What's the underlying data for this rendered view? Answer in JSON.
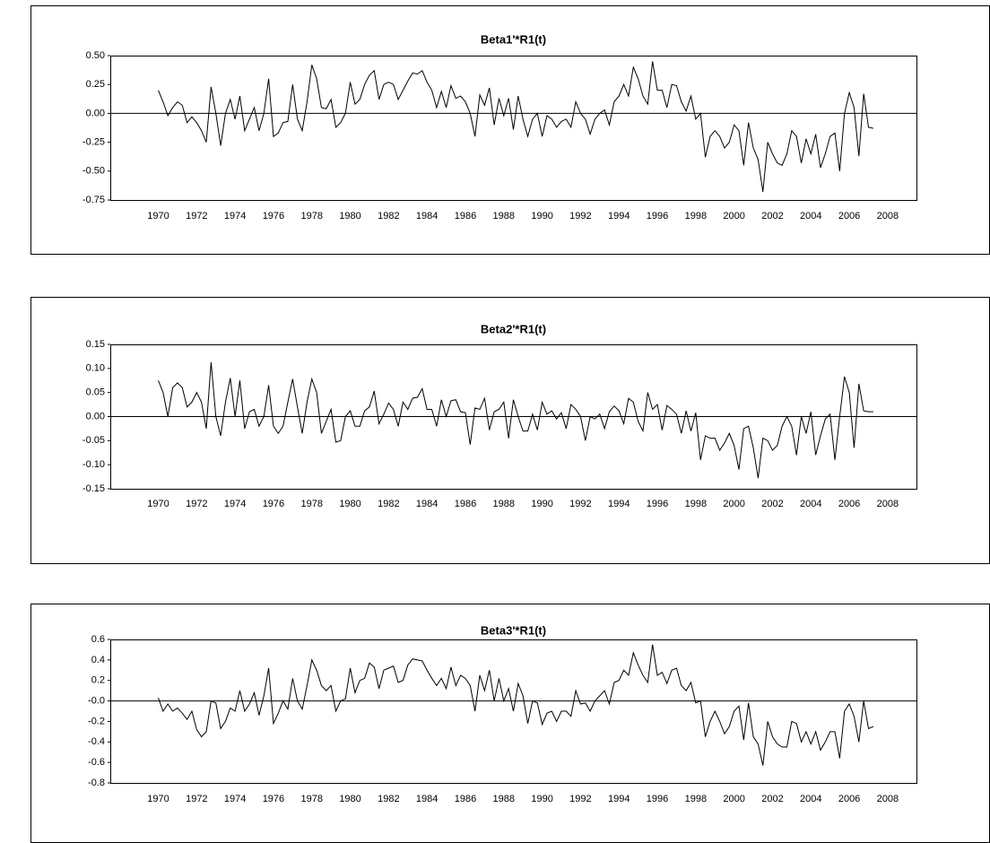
{
  "chart_data": [
    {
      "type": "line",
      "title": "Beta1'*R1(t)",
      "color": "#000000",
      "xlim": [
        1967.5,
        2009.5
      ],
      "xticks": [
        1970,
        1972,
        1974,
        1976,
        1978,
        1980,
        1982,
        1984,
        1986,
        1988,
        1990,
        1992,
        1994,
        1996,
        1998,
        2000,
        2002,
        2004,
        2006,
        2008
      ],
      "ylim": [
        -0.75,
        0.5
      ],
      "yticks": [
        {
          "value": 0.5,
          "label": "0.50"
        },
        {
          "value": 0.25,
          "label": "0.25"
        },
        {
          "value": 0,
          "label": "0.00"
        },
        {
          "value": -0.25,
          "label": "-0.25"
        },
        {
          "value": -0.5,
          "label": "-0.50"
        },
        {
          "value": -0.75,
          "label": "-0.75"
        }
      ],
      "x": [
        1970,
        1970.25,
        1970.5,
        1970.75,
        1971,
        1971.25,
        1971.5,
        1971.75,
        1972,
        1972.25,
        1972.5,
        1972.75,
        1973,
        1973.25,
        1973.5,
        1973.75,
        1974,
        1974.25,
        1974.5,
        1974.75,
        1975,
        1975.25,
        1975.5,
        1975.75,
        1976,
        1976.25,
        1976.5,
        1976.75,
        1977,
        1977.25,
        1977.5,
        1977.75,
        1978,
        1978.25,
        1978.5,
        1978.75,
        1979,
        1979.25,
        1979.5,
        1979.75,
        1980,
        1980.25,
        1980.5,
        1980.75,
        1981,
        1981.25,
        1981.5,
        1981.75,
        1982,
        1982.25,
        1982.5,
        1982.75,
        1983,
        1983.25,
        1983.5,
        1983.75,
        1984,
        1984.25,
        1984.5,
        1984.75,
        1985,
        1985.25,
        1985.5,
        1985.75,
        1986,
        1986.25,
        1986.5,
        1986.75,
        1987,
        1987.25,
        1987.5,
        1987.75,
        1988,
        1988.25,
        1988.5,
        1988.75,
        1989,
        1989.25,
        1989.5,
        1989.75,
        1990,
        1990.25,
        1990.5,
        1990.75,
        1991,
        1991.25,
        1991.5,
        1991.75,
        1992,
        1992.25,
        1992.5,
        1992.75,
        1993,
        1993.25,
        1993.5,
        1993.75,
        1994,
        1994.25,
        1994.5,
        1994.75,
        1995,
        1995.25,
        1995.5,
        1995.75,
        1996,
        1996.25,
        1996.5,
        1996.75,
        1997,
        1997.25,
        1997.5,
        1997.75,
        1998,
        1998.25,
        1998.5,
        1998.75,
        1999,
        1999.25,
        1999.5,
        1999.75,
        2000,
        2000.25,
        2000.5,
        2000.75,
        2001,
        2001.25,
        2001.5,
        2001.75,
        2002,
        2002.25,
        2002.5,
        2002.75,
        2003,
        2003.25,
        2003.5,
        2003.75,
        2004,
        2004.25,
        2004.5,
        2004.75,
        2005,
        2005.25,
        2005.5,
        2005.75,
        2006,
        2006.25,
        2006.5,
        2006.75,
        2007,
        2007.25
      ],
      "values": [
        0.2,
        0.1,
        -0.02,
        0.05,
        0.1,
        0.07,
        -0.08,
        -0.03,
        -0.08,
        -0.15,
        -0.25,
        0.23,
        0.0,
        -0.28,
        0.0,
        0.12,
        -0.05,
        0.15,
        -0.15,
        -0.05,
        0.05,
        -0.15,
        0.0,
        0.3,
        -0.2,
        -0.17,
        -0.08,
        -0.07,
        0.25,
        -0.05,
        -0.15,
        0.1,
        0.42,
        0.3,
        0.05,
        0.04,
        0.12,
        -0.12,
        -0.08,
        0.0,
        0.27,
        0.08,
        0.12,
        0.25,
        0.33,
        0.37,
        0.12,
        0.25,
        0.27,
        0.25,
        0.12,
        0.2,
        0.28,
        0.35,
        0.34,
        0.37,
        0.27,
        0.2,
        0.05,
        0.19,
        0.05,
        0.24,
        0.13,
        0.15,
        0.1,
        0.0,
        -0.2,
        0.16,
        0.07,
        0.22,
        -0.1,
        0.13,
        -0.02,
        0.13,
        -0.14,
        0.15,
        -0.05,
        -0.2,
        -0.05,
        0.0,
        -0.2,
        -0.02,
        -0.05,
        -0.12,
        -0.07,
        -0.05,
        -0.12,
        0.1,
        0.0,
        -0.05,
        -0.18,
        -0.05,
        0.0,
        0.03,
        -0.1,
        0.1,
        0.15,
        0.25,
        0.15,
        0.4,
        0.3,
        0.15,
        0.08,
        0.45,
        0.2,
        0.2,
        0.05,
        0.25,
        0.24,
        0.1,
        0.02,
        0.15,
        -0.05,
        0.0,
        -0.38,
        -0.2,
        -0.15,
        -0.2,
        -0.3,
        -0.25,
        -0.1,
        -0.15,
        -0.45,
        -0.08,
        -0.3,
        -0.4,
        -0.68,
        -0.25,
        -0.35,
        -0.43,
        -0.45,
        -0.35,
        -0.15,
        -0.2,
        -0.43,
        -0.22,
        -0.35,
        -0.18,
        -0.47,
        -0.35,
        -0.2,
        -0.17,
        -0.5,
        0.0,
        0.18,
        0.05,
        -0.37,
        0.17,
        -0.12,
        -0.13
      ]
    },
    {
      "type": "line",
      "title": "Beta2'*R1(t)",
      "color": "#000000",
      "xlim": [
        1967.5,
        2009.5
      ],
      "xticks": [
        1970,
        1972,
        1974,
        1976,
        1978,
        1980,
        1982,
        1984,
        1986,
        1988,
        1990,
        1992,
        1994,
        1996,
        1998,
        2000,
        2002,
        2004,
        2006,
        2008
      ],
      "ylim": [
        -0.15,
        0.15
      ],
      "yticks": [
        {
          "value": 0.15,
          "label": "0.15"
        },
        {
          "value": 0.1,
          "label": "0.10"
        },
        {
          "value": 0.05,
          "label": "0.05"
        },
        {
          "value": 0,
          "label": "0.00"
        },
        {
          "value": -0.05,
          "label": "-0.05"
        },
        {
          "value": -0.1,
          "label": "-0.10"
        },
        {
          "value": -0.15,
          "label": "-0.15"
        }
      ],
      "x": [
        1970,
        1970.25,
        1970.5,
        1970.75,
        1971,
        1971.25,
        1971.5,
        1971.75,
        1972,
        1972.25,
        1972.5,
        1972.75,
        1973,
        1973.25,
        1973.5,
        1973.75,
        1974,
        1974.25,
        1974.5,
        1974.75,
        1975,
        1975.25,
        1975.5,
        1975.75,
        1976,
        1976.25,
        1976.5,
        1976.75,
        1977,
        1977.25,
        1977.5,
        1977.75,
        1978,
        1978.25,
        1978.5,
        1978.75,
        1979,
        1979.25,
        1979.5,
        1979.75,
        1980,
        1980.25,
        1980.5,
        1980.75,
        1981,
        1981.25,
        1981.5,
        1981.75,
        1982,
        1982.25,
        1982.5,
        1982.75,
        1983,
        1983.25,
        1983.5,
        1983.75,
        1984,
        1984.25,
        1984.5,
        1984.75,
        1985,
        1985.25,
        1985.5,
        1985.75,
        1986,
        1986.25,
        1986.5,
        1986.75,
        1987,
        1987.25,
        1987.5,
        1987.75,
        1988,
        1988.25,
        1988.5,
        1988.75,
        1989,
        1989.25,
        1989.5,
        1989.75,
        1990,
        1990.25,
        1990.5,
        1990.75,
        1991,
        1991.25,
        1991.5,
        1991.75,
        1992,
        1992.25,
        1992.5,
        1992.75,
        1993,
        1993.25,
        1993.5,
        1993.75,
        1994,
        1994.25,
        1994.5,
        1994.75,
        1995,
        1995.25,
        1995.5,
        1995.75,
        1996,
        1996.25,
        1996.5,
        1996.75,
        1997,
        1997.25,
        1997.5,
        1997.75,
        1998,
        1998.25,
        1998.5,
        1998.75,
        1999,
        1999.25,
        1999.5,
        1999.75,
        2000,
        2000.25,
        2000.5,
        2000.75,
        2001,
        2001.25,
        2001.5,
        2001.75,
        2002,
        2002.25,
        2002.5,
        2002.75,
        2003,
        2003.25,
        2003.5,
        2003.75,
        2004,
        2004.25,
        2004.5,
        2004.75,
        2005,
        2005.25,
        2005.5,
        2005.75,
        2006,
        2006.25,
        2006.5,
        2006.75,
        2007,
        2007.25
      ],
      "values": [
        0.075,
        0.05,
        0.0,
        0.06,
        0.07,
        0.06,
        0.02,
        0.03,
        0.05,
        0.03,
        -0.025,
        0.113,
        0.0,
        -0.04,
        0.03,
        0.08,
        0.0,
        0.075,
        -0.025,
        0.01,
        0.015,
        -0.02,
        0.0,
        0.065,
        -0.02,
        -0.035,
        -0.02,
        0.03,
        0.078,
        0.02,
        -0.035,
        0.03,
        0.078,
        0.05,
        -0.035,
        -0.01,
        0.015,
        -0.053,
        -0.05,
        0.0,
        0.012,
        -0.02,
        -0.02,
        0.012,
        0.02,
        0.053,
        -0.015,
        0.005,
        0.028,
        0.015,
        -0.02,
        0.03,
        0.015,
        0.038,
        0.04,
        0.058,
        0.015,
        0.015,
        -0.02,
        0.035,
        0.0,
        0.033,
        0.035,
        0.01,
        0.008,
        -0.058,
        0.018,
        0.015,
        0.038,
        -0.028,
        0.01,
        0.015,
        0.03,
        -0.045,
        0.035,
        0.0,
        -0.03,
        -0.03,
        0.005,
        -0.028,
        0.03,
        0.005,
        0.012,
        -0.005,
        0.008,
        -0.025,
        0.025,
        0.015,
        0.0,
        -0.05,
        0.0,
        -0.005,
        0.005,
        -0.025,
        0.01,
        0.022,
        0.012,
        -0.015,
        0.038,
        0.03,
        -0.01,
        -0.03,
        0.05,
        0.015,
        0.025,
        -0.028,
        0.023,
        0.015,
        0.005,
        -0.035,
        0.012,
        -0.03,
        0.008,
        -0.09,
        -0.04,
        -0.045,
        -0.045,
        -0.07,
        -0.055,
        -0.035,
        -0.06,
        -0.11,
        -0.025,
        -0.02,
        -0.065,
        -0.128,
        -0.045,
        -0.05,
        -0.07,
        -0.06,
        -0.02,
        0.0,
        -0.02,
        -0.08,
        0.0,
        -0.035,
        0.01,
        -0.08,
        -0.04,
        -0.005,
        0.005,
        -0.09,
        0.0,
        0.083,
        0.05,
        -0.065,
        0.068,
        0.012,
        0.01,
        0.01
      ]
    },
    {
      "type": "line",
      "title": "Beta3'*R1(t)",
      "color": "#000000",
      "xlim": [
        1967.5,
        2009.5
      ],
      "xticks": [
        1970,
        1972,
        1974,
        1976,
        1978,
        1980,
        1982,
        1984,
        1986,
        1988,
        1990,
        1992,
        1994,
        1996,
        1998,
        2000,
        2002,
        2004,
        2006,
        2008
      ],
      "ylim": [
        -0.8,
        0.6
      ],
      "yticks": [
        0.6,
        0.4,
        0.2,
        {
          "value": 0,
          "label": "-0.0"
        },
        -0.2,
        -0.4,
        -0.6,
        -0.8
      ],
      "x": [
        1970,
        1970.25,
        1970.5,
        1970.75,
        1971,
        1971.25,
        1971.5,
        1971.75,
        1972,
        1972.25,
        1972.5,
        1972.75,
        1973,
        1973.25,
        1973.5,
        1973.75,
        1974,
        1974.25,
        1974.5,
        1974.75,
        1975,
        1975.25,
        1975.5,
        1975.75,
        1976,
        1976.25,
        1976.5,
        1976.75,
        1977,
        1977.25,
        1977.5,
        1977.75,
        1978,
        1978.25,
        1978.5,
        1978.75,
        1979,
        1979.25,
        1979.5,
        1979.75,
        1980,
        1980.25,
        1980.5,
        1980.75,
        1981,
        1981.25,
        1981.5,
        1981.75,
        1982,
        1982.25,
        1982.5,
        1982.75,
        1983,
        1983.25,
        1983.5,
        1983.75,
        1984,
        1984.25,
        1984.5,
        1984.75,
        1985,
        1985.25,
        1985.5,
        1985.75,
        1986,
        1986.25,
        1986.5,
        1986.75,
        1987,
        1987.25,
        1987.5,
        1987.75,
        1988,
        1988.25,
        1988.5,
        1988.75,
        1989,
        1989.25,
        1989.5,
        1989.75,
        1990,
        1990.25,
        1990.5,
        1990.75,
        1991,
        1991.25,
        1991.5,
        1991.75,
        1992,
        1992.25,
        1992.5,
        1992.75,
        1993,
        1993.25,
        1993.5,
        1993.75,
        1994,
        1994.25,
        1994.5,
        1994.75,
        1995,
        1995.25,
        1995.5,
        1995.75,
        1996,
        1996.25,
        1996.5,
        1996.75,
        1997,
        1997.25,
        1997.5,
        1997.75,
        1998,
        1998.25,
        1998.5,
        1998.75,
        1999,
        1999.25,
        1999.5,
        1999.75,
        2000,
        2000.25,
        2000.5,
        2000.75,
        2001,
        2001.25,
        2001.5,
        2001.75,
        2002,
        2002.25,
        2002.5,
        2002.75,
        2003,
        2003.25,
        2003.5,
        2003.75,
        2004,
        2004.25,
        2004.5,
        2004.75,
        2005,
        2005.25,
        2005.5,
        2005.75,
        2006,
        2006.25,
        2006.5,
        2006.75,
        2007,
        2007.25
      ],
      "values": [
        0.03,
        -0.1,
        -0.03,
        -0.1,
        -0.07,
        -0.12,
        -0.18,
        -0.1,
        -0.28,
        -0.35,
        -0.3,
        0.0,
        -0.02,
        -0.27,
        -0.2,
        -0.07,
        -0.1,
        0.1,
        -0.1,
        -0.03,
        0.08,
        -0.14,
        0.05,
        0.32,
        -0.22,
        -0.12,
        0.0,
        -0.08,
        0.22,
        0.0,
        -0.08,
        0.15,
        0.4,
        0.3,
        0.15,
        0.1,
        0.15,
        -0.1,
        0.0,
        0.02,
        0.32,
        0.08,
        0.2,
        0.22,
        0.37,
        0.33,
        0.12,
        0.3,
        0.32,
        0.34,
        0.18,
        0.2,
        0.35,
        0.41,
        0.4,
        0.39,
        0.3,
        0.22,
        0.15,
        0.22,
        0.12,
        0.33,
        0.15,
        0.25,
        0.22,
        0.15,
        -0.1,
        0.25,
        0.1,
        0.3,
        0.0,
        0.22,
        0.0,
        0.12,
        -0.1,
        0.17,
        0.05,
        -0.22,
        0.0,
        -0.02,
        -0.23,
        -0.12,
        -0.1,
        -0.2,
        -0.1,
        -0.1,
        -0.15,
        0.1,
        -0.03,
        -0.02,
        -0.1,
        0.0,
        0.05,
        0.1,
        -0.03,
        0.18,
        0.2,
        0.3,
        0.25,
        0.47,
        0.35,
        0.25,
        0.18,
        0.55,
        0.25,
        0.28,
        0.17,
        0.3,
        0.32,
        0.15,
        0.1,
        0.18,
        -0.02,
        0.0,
        -0.35,
        -0.2,
        -0.1,
        -0.2,
        -0.32,
        -0.25,
        -0.1,
        -0.05,
        -0.38,
        -0.02,
        -0.35,
        -0.42,
        -0.63,
        -0.2,
        -0.35,
        -0.42,
        -0.45,
        -0.45,
        -0.2,
        -0.22,
        -0.4,
        -0.3,
        -0.42,
        -0.3,
        -0.48,
        -0.4,
        -0.3,
        -0.3,
        -0.56,
        -0.1,
        -0.03,
        -0.15,
        -0.4,
        0.0,
        -0.27,
        -0.25
      ]
    }
  ]
}
